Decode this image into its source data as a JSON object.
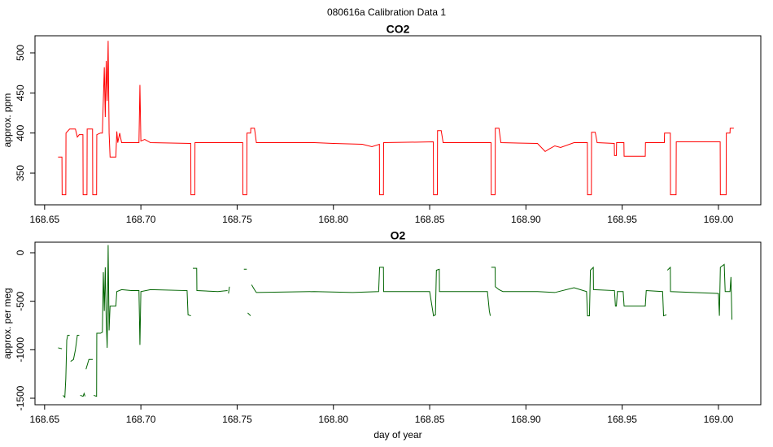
{
  "title": "080616a   Calibration Data 1",
  "chart_data": [
    {
      "type": "line",
      "title": "CO2",
      "ylabel": "approx. ppm",
      "color": "#ff0000",
      "xlim": [
        168.645,
        169.022
      ],
      "ylim": [
        310.5,
        521.3
      ],
      "xticks": [
        168.65,
        {
          "value": 168.7,
          "label": "168.70"
        },
        168.75,
        {
          "value": 168.8,
          "label": "168.80"
        },
        168.85,
        {
          "value": 168.9,
          "label": "168.90"
        },
        168.95,
        {
          "value": 169.0,
          "label": "169.00"
        }
      ],
      "yticks": [
        350,
        400,
        450,
        500
      ],
      "x": [
        168.657,
        168.659,
        168.6591,
        168.661,
        168.6611,
        168.663,
        168.666,
        168.667,
        168.668,
        168.6699,
        168.67,
        168.672,
        168.6721,
        168.6749,
        168.675,
        168.677,
        168.6771,
        168.679,
        168.68,
        168.681,
        168.6815,
        168.682,
        168.6825,
        168.683,
        168.6835,
        168.684,
        168.687,
        168.6875,
        168.688,
        168.689,
        168.69,
        168.695,
        168.699,
        168.6995,
        168.7,
        168.702,
        168.705,
        168.7259,
        168.726,
        168.728,
        168.7281,
        168.7529,
        168.753,
        168.755,
        168.7551,
        168.757,
        168.7571,
        168.759,
        168.76,
        168.79,
        168.8,
        168.815,
        168.82,
        168.8239,
        168.824,
        168.826,
        168.8261,
        168.8519,
        168.852,
        168.854,
        168.8541,
        168.856,
        168.857,
        168.8819,
        168.882,
        168.884,
        168.8841,
        168.886,
        168.887,
        168.906,
        168.91,
        168.912,
        168.915,
        168.918,
        168.925,
        168.9319,
        168.932,
        168.934,
        168.9341,
        168.936,
        168.937,
        168.9459,
        168.946,
        168.947,
        168.9471,
        168.9509,
        168.951,
        168.962,
        168.9621,
        168.9719,
        168.972,
        168.975,
        168.9751,
        168.978,
        168.9781,
        169.0009,
        169.001,
        169.004,
        169.0041,
        169.006,
        169.0061,
        169.008
      ],
      "values": [
        370,
        370,
        323,
        323,
        400,
        405,
        405,
        395,
        398,
        398,
        323,
        323,
        405,
        405,
        323,
        323,
        398,
        400,
        400,
        482,
        420,
        490,
        440,
        515,
        400,
        370,
        370,
        402,
        388,
        400,
        388,
        388,
        388,
        460,
        390,
        392,
        388,
        387,
        323,
        323,
        388,
        388,
        323,
        323,
        400,
        400,
        406,
        406,
        388,
        388,
        387,
        386,
        383,
        386,
        323,
        323,
        388,
        389,
        323,
        323,
        403,
        403,
        388,
        388,
        323,
        323,
        406,
        406,
        388,
        387,
        377,
        380,
        384,
        382,
        388,
        388,
        323,
        323,
        401,
        401,
        388,
        387,
        372,
        372,
        388,
        388,
        371,
        371,
        388,
        388,
        400,
        400,
        323,
        323,
        389,
        389,
        323,
        323,
        400,
        400,
        406,
        406
      ]
    },
    {
      "type": "line",
      "title": "O2",
      "ylabel": "approx. per meg",
      "xlabel": "day of year",
      "color": "#006400",
      "xlim": [
        168.645,
        169.022
      ],
      "ylim": [
        -1567,
        109
      ],
      "xticks": [
        168.65,
        {
          "value": 168.7,
          "label": "168.70"
        },
        168.75,
        {
          "value": 168.8,
          "label": "168.80"
        },
        168.85,
        {
          "value": 168.9,
          "label": "168.90"
        },
        168.95,
        {
          "value": 169.0,
          "label": "169.00"
        }
      ],
      "yticks": [
        0,
        -500,
        -1000,
        -1500
      ],
      "x": [
        168.657,
        168.659,
        168.6591,
        168.6595,
        168.6605,
        168.661,
        168.6612,
        168.6615,
        168.662,
        168.663,
        168.6631,
        168.6635,
        168.665,
        168.666,
        168.667,
        168.668,
        168.6681,
        168.6685,
        168.67,
        168.6705,
        168.671,
        168.6711,
        168.6715,
        168.673,
        168.675,
        168.6751,
        168.6755,
        168.677,
        168.6771,
        168.679,
        168.68,
        168.6805,
        168.681,
        168.6815,
        168.682,
        168.6825,
        168.683,
        168.6835,
        168.684,
        168.687,
        168.6875,
        168.69,
        168.695,
        168.699,
        168.6995,
        168.7,
        168.705,
        168.724,
        168.7245,
        168.726,
        168.7261,
        168.727,
        168.729,
        168.7291,
        168.74,
        168.745,
        168.7451,
        168.7455,
        168.746,
        168.7461,
        168.7535,
        168.755,
        168.7551,
        168.7555,
        168.757,
        168.7571,
        168.7575,
        168.759,
        168.76,
        168.79,
        168.81,
        168.8235,
        168.824,
        168.826,
        168.8261,
        168.85,
        168.852,
        168.853,
        168.8535,
        168.855,
        168.8551,
        168.88,
        168.881,
        168.8815,
        168.8816,
        168.882,
        168.884,
        168.8841,
        168.886,
        168.888,
        168.906,
        168.915,
        168.925,
        168.9315,
        168.932,
        168.933,
        168.9335,
        168.935,
        168.9351,
        168.946,
        168.9465,
        168.947,
        168.9475,
        168.9505,
        168.951,
        168.962,
        168.9625,
        168.971,
        168.9715,
        168.973,
        168.9731,
        168.9735,
        168.975,
        168.9751,
        169.0,
        169.0005,
        169.001,
        169.003,
        169.0035,
        169.006,
        169.0065,
        169.007
      ],
      "values": [
        -980,
        -990,
        null,
        -1470,
        -1490,
        -1300,
        -1150,
        -900,
        -850,
        -850,
        null,
        -1120,
        -1100,
        -1000,
        -850,
        -850,
        null,
        -1470,
        -1480,
        -1450,
        -1480,
        null,
        -1200,
        -1100,
        -1100,
        null,
        -1470,
        -1480,
        -830,
        -830,
        -820,
        -200,
        -600,
        -150,
        -700,
        -980,
        80,
        -800,
        -550,
        -550,
        -400,
        -380,
        -390,
        -390,
        -950,
        -400,
        -380,
        -390,
        -640,
        -650,
        null,
        -160,
        -160,
        -390,
        -400,
        -390,
        null,
        -420,
        -350,
        null,
        -170,
        -170,
        null,
        -620,
        -650,
        null,
        -330,
        -380,
        -410,
        -400,
        -410,
        -400,
        -150,
        -150,
        -400,
        -400,
        -650,
        -640,
        -180,
        -170,
        -400,
        -400,
        -600,
        -650,
        null,
        -150,
        -150,
        -350,
        -380,
        -400,
        -400,
        -410,
        -360,
        -400,
        -650,
        -650,
        -180,
        -150,
        -380,
        -390,
        -550,
        -550,
        -400,
        -400,
        -550,
        -550,
        -390,
        -400,
        -650,
        -640,
        null,
        -180,
        -150,
        -400,
        -420,
        -650,
        -150,
        -120,
        -400,
        -400,
        -250,
        -690
      ]
    }
  ]
}
